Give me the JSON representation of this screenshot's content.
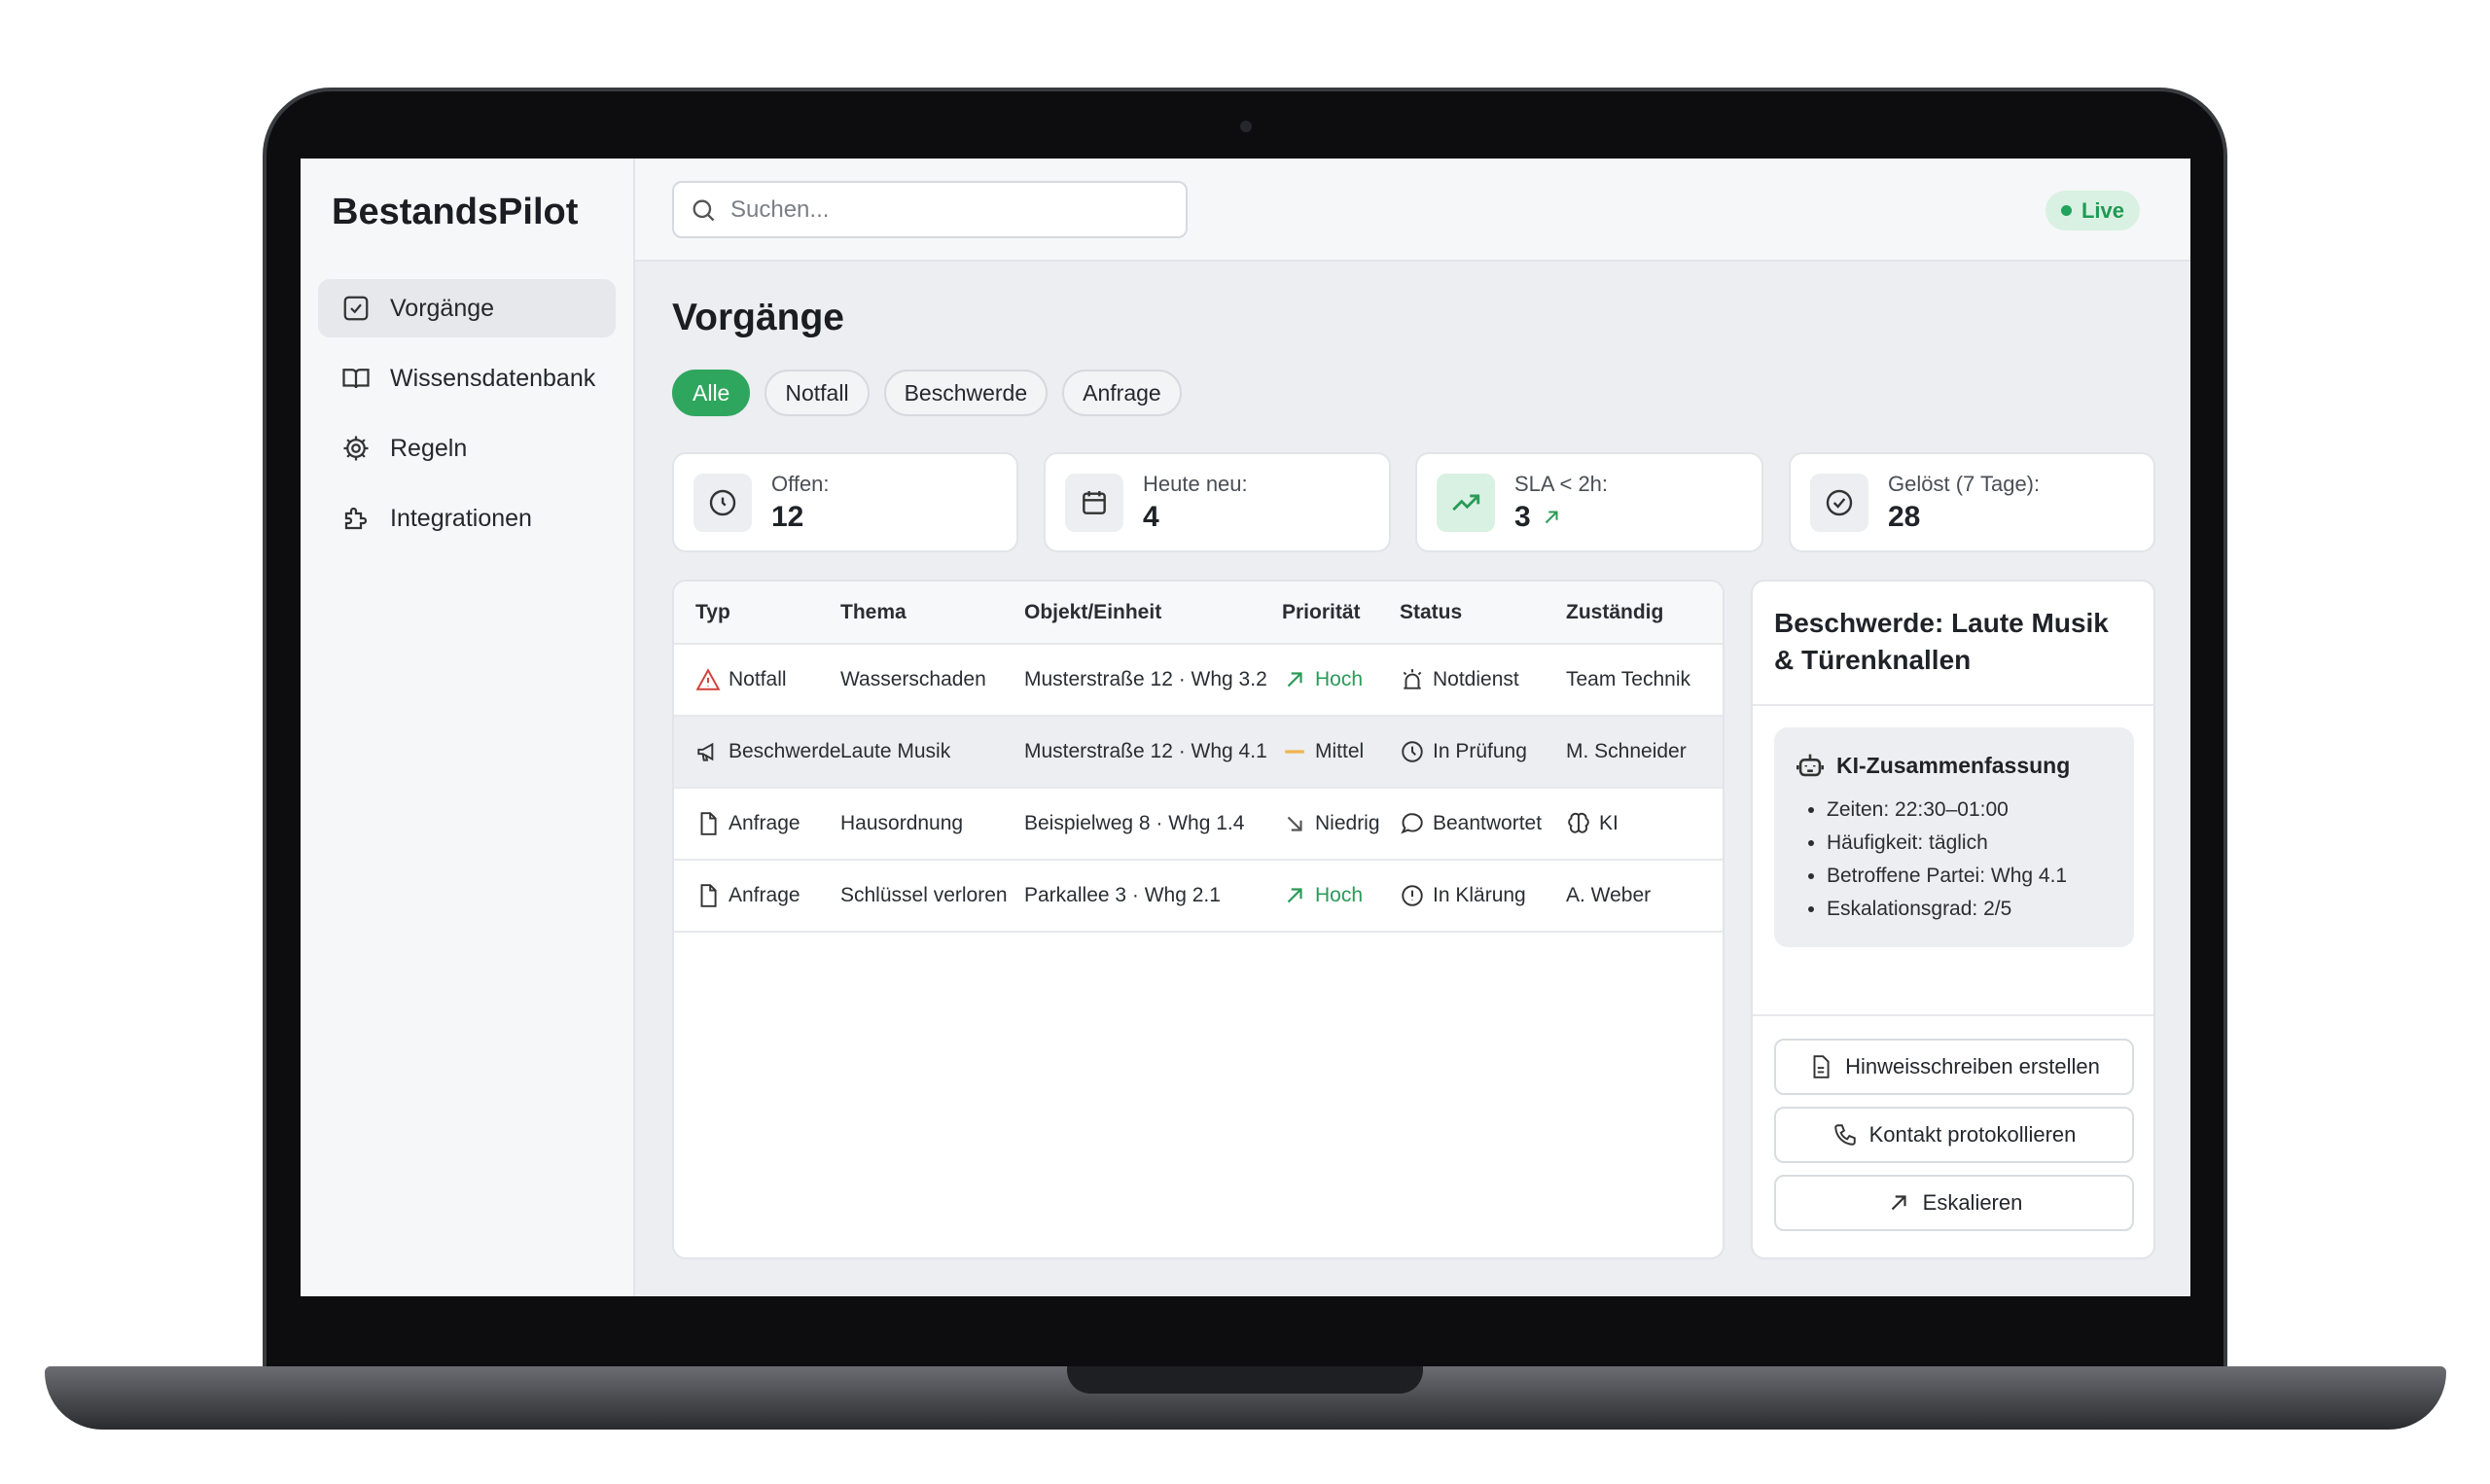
{
  "app": {
    "brand": "BestandsPilot",
    "live_label": "Live",
    "accent": "#2fa65e"
  },
  "sidebar": {
    "items": [
      {
        "label": "Vorgänge",
        "icon": "check-square-icon",
        "active": true
      },
      {
        "label": "Wissensdatenbank",
        "icon": "book-icon"
      },
      {
        "label": "Regeln",
        "icon": "gear-icon"
      },
      {
        "label": "Integrationen",
        "icon": "puzzle-icon"
      }
    ]
  },
  "search": {
    "placeholder": "Suchen..."
  },
  "main": {
    "title": "Vorgänge",
    "filters": [
      "Alle",
      "Notfall",
      "Beschwerde",
      "Anfrage"
    ],
    "active_filter": "Alle",
    "stats": [
      {
        "label": "Offen:",
        "value": "12",
        "icon": "clock-icon"
      },
      {
        "label": "Heute neu:",
        "value": "4",
        "icon": "calendar-icon"
      },
      {
        "label": "SLA < 2h:",
        "value": "3",
        "icon": "trending-up-icon",
        "trend": "up"
      },
      {
        "label": "Gelöst (7 Tage):",
        "value": "28",
        "icon": "check-circle-icon"
      }
    ],
    "table": {
      "headers": [
        "Typ",
        "Thema",
        "Objekt/Einheit",
        "Priorität",
        "Status",
        "Zuständig"
      ],
      "rows": [
        {
          "typ": "Notfall",
          "thema": "Wasserschaden",
          "objekt": "Musterstraße 12 · Whg 3.2",
          "prio": "Hoch",
          "status": "Notdienst",
          "zustaendig": "Team Technik"
        },
        {
          "typ": "Beschwerde",
          "thema": "Laute Musik",
          "objekt": "Musterstraße 12 · Whg 4.1",
          "prio": "Mittel",
          "status": "In Prüfung",
          "zustaendig": "M. Schneider"
        },
        {
          "typ": "Anfrage",
          "thema": "Hausordnung",
          "objekt": "Beispielweg 8 · Whg 1.4",
          "prio": "Niedrig",
          "status": "Beantwortet",
          "zustaendig": "KI"
        },
        {
          "typ": "Anfrage",
          "thema": "Schlüssel verloren",
          "objekt": "Parkallee 3 · Whg 2.1",
          "prio": "Hoch",
          "status": "In Klärung",
          "zustaendig": "A. Weber"
        }
      ]
    }
  },
  "detail": {
    "title": "Beschwerde: Laute Musik & Türenknallen",
    "ai_title": "KI-Zusammenfassung",
    "ai_points": [
      "Zeiten: 22:30–01:00",
      "Häufigkeit: täglich",
      "Betroffene Partei: Whg 4.1",
      "Eskalationsgrad: 2/5"
    ],
    "actions": [
      "Hinweisschreiben erstellen",
      "Kontakt protokollieren",
      "Eskalieren"
    ]
  }
}
